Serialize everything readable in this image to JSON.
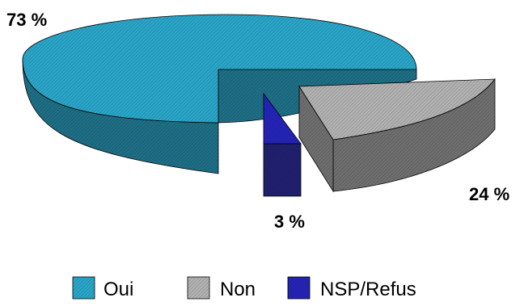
{
  "chart_data": {
    "type": "pie",
    "style": "3d-exploded",
    "categories": [
      "Oui",
      "Non",
      "NSP/Refus"
    ],
    "values": [
      73,
      24,
      3
    ],
    "data_labels": [
      "73 %",
      "24 %",
      "3 %"
    ],
    "colors": [
      "#2aa6c9",
      "#b2b2b2",
      "#2424b8"
    ],
    "side_colors": [
      "#1e6f86",
      "#6f6f6f",
      "#202070"
    ],
    "legend": {
      "entries": [
        "Oui",
        "Non",
        "NSP/Refus"
      ],
      "placement": "bottom"
    },
    "title": "",
    "fill_pattern": "diagonal hatching"
  }
}
